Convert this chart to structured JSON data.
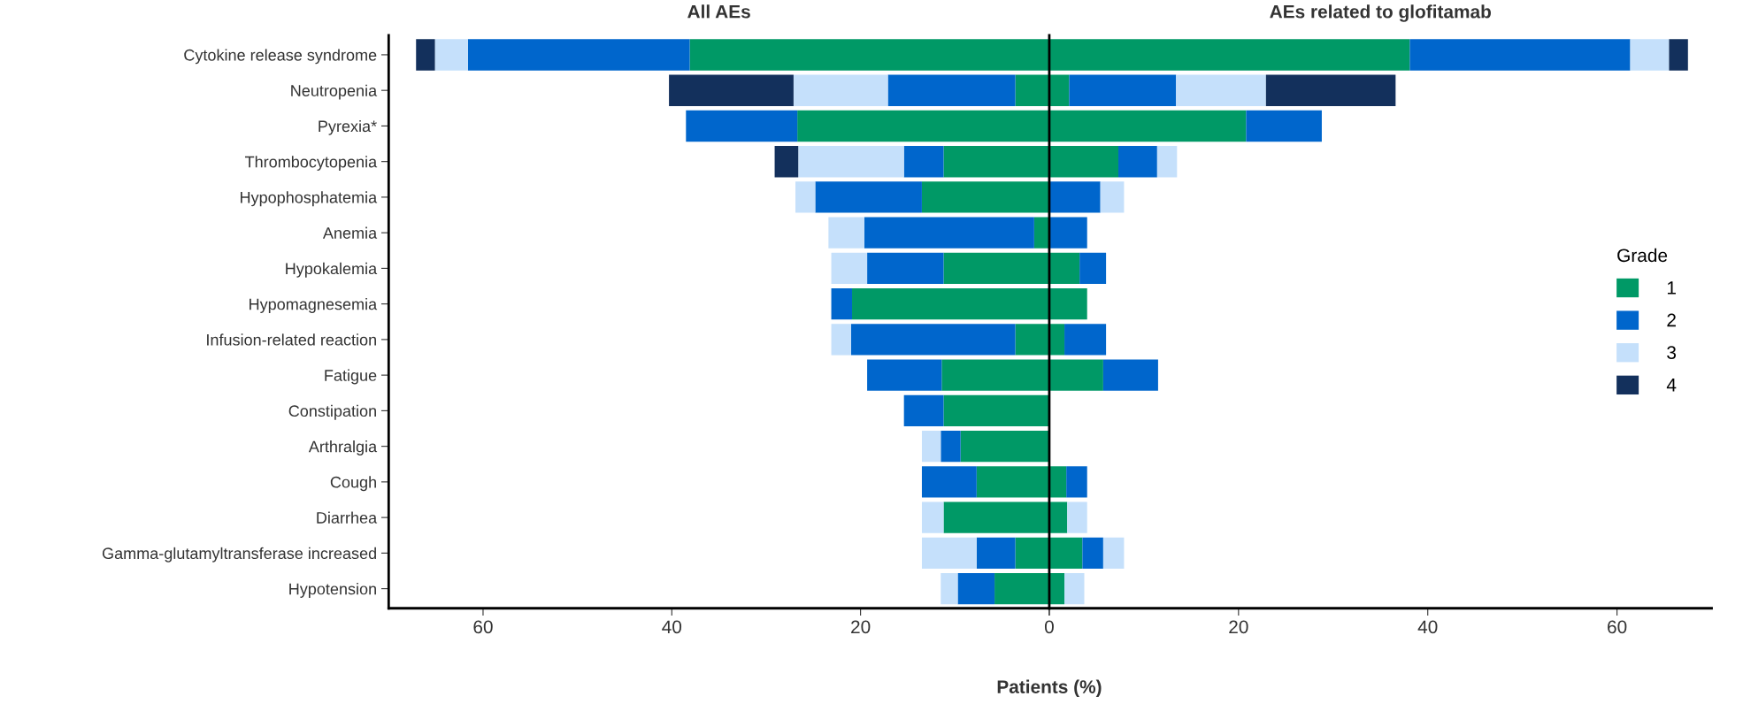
{
  "chart_data": [
    {
      "type": "bar",
      "orientation": "horizontal",
      "stacked": true,
      "title": "All AEs",
      "xlabel": "Patients (%)",
      "categories": [
        "Cytokine release syndrome",
        "Neutropenia",
        "Pyrexia*",
        "Thrombocytopenia",
        "Hypophosphatemia",
        "Anemia",
        "Hypokalemia",
        "Hypomagnesemia",
        "Infusion-related reaction",
        "Fatigue",
        "Constipation",
        "Arthralgia",
        "Cough",
        "Diarrhea",
        "Gamma-glutamyltransferase increased",
        "Hypotension"
      ],
      "series": [
        {
          "name": "1",
          "color": "#009966",
          "values": [
            38.1,
            3.6,
            26.7,
            11.2,
            13.5,
            1.6,
            11.2,
            20.9,
            3.6,
            11.4,
            11.2,
            9.4,
            7.7,
            11.2,
            3.6,
            5.8
          ]
        },
        {
          "name": "2",
          "color": "#0066cc",
          "values": [
            23.5,
            13.5,
            11.8,
            4.2,
            11.3,
            18,
            8.1,
            2.2,
            17.4,
            7.9,
            4.2,
            2.1,
            5.8,
            0,
            4.1,
            3.9
          ]
        },
        {
          "name": "3",
          "color": "#c5e0fb",
          "values": [
            3.5,
            10,
            0,
            11.2,
            2.1,
            3.8,
            3.8,
            0,
            2.1,
            0,
            0,
            2,
            0,
            2.3,
            5.8,
            1.8
          ]
        },
        {
          "name": "4",
          "color": "#13305c",
          "values": [
            2,
            13.2,
            0,
            2.5,
            0,
            0,
            0,
            0,
            0,
            0,
            0,
            0,
            0,
            0,
            0,
            0
          ]
        }
      ],
      "xlim": [
        70,
        0
      ],
      "xticks": [
        60,
        40,
        20,
        {
          "value": 0,
          "label": null
        }
      ],
      "legend": "right",
      "legend_title": "Grade"
    },
    {
      "type": "bar",
      "orientation": "horizontal",
      "stacked": true,
      "title": "AEs related to glofitamab",
      "categories": [
        null,
        null,
        null,
        null,
        null,
        null,
        null,
        null,
        null,
        null,
        null,
        null,
        null,
        null,
        null,
        null
      ],
      "series": [
        {
          "name": "1",
          "color": "#009966",
          "values": [
            38.1,
            2.1,
            20.8,
            7.3,
            0,
            0,
            3.2,
            4,
            1.6,
            5.7,
            0,
            0,
            1.8,
            1.9,
            3.5,
            1.6
          ]
        },
        {
          "name": "2",
          "color": "#0066cc",
          "values": [
            23.3,
            11.3,
            8,
            4.1,
            5.4,
            4,
            2.8,
            0,
            4.4,
            5.8,
            0,
            0,
            2.2,
            0,
            2.2,
            0
          ]
        },
        {
          "name": "3",
          "color": "#c5e0fb",
          "values": [
            4.1,
            9.5,
            0,
            2.1,
            2.5,
            0,
            0,
            0,
            0,
            0,
            0,
            0,
            0,
            2.1,
            2.2,
            2.1
          ]
        },
        {
          "name": "4",
          "color": "#13305c",
          "values": [
            2,
            13.7,
            0,
            0,
            0,
            0,
            0,
            0,
            0,
            0,
            0,
            0,
            0,
            0,
            0,
            0
          ]
        }
      ],
      "xlim": [
        0,
        70
      ],
      "xticks": [
        0,
        20,
        40,
        60
      ],
      "tick_labels": "x"
    }
  ]
}
